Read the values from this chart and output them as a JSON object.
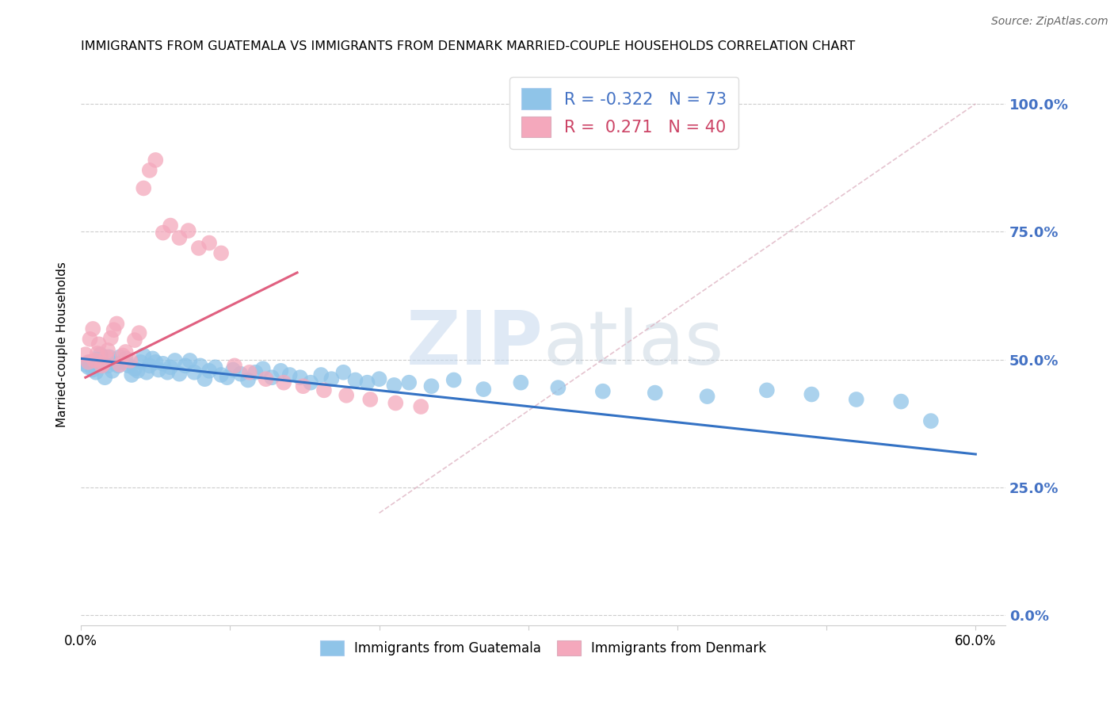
{
  "title": "IMMIGRANTS FROM GUATEMALA VS IMMIGRANTS FROM DENMARK MARRIED-COUPLE HOUSEHOLDS CORRELATION CHART",
  "source": "Source: ZipAtlas.com",
  "ylabel_label": "Married-couple Households",
  "legend_label1": "Immigrants from Guatemala",
  "legend_label2": "Immigrants from Denmark",
  "R1": -0.322,
  "N1": 73,
  "R2": 0.271,
  "N2": 40,
  "color_blue": "#8fc4e8",
  "color_pink": "#f4a8bc",
  "color_blue_line": "#3472c4",
  "color_pink_line": "#e06080",
  "color_diag": "#daaabb",
  "watermark_zip": "ZIP",
  "watermark_atlas": "atlas",
  "xlim": [
    0.0,
    0.62
  ],
  "ylim": [
    -0.02,
    1.08
  ],
  "ytick_vals": [
    0.0,
    0.25,
    0.5,
    0.75,
    1.0
  ],
  "ytick_labels": [
    "0.0%",
    "25.0%",
    "50.0%",
    "75.0%",
    "100.0%"
  ],
  "xtick_vals": [
    0.0,
    0.1,
    0.2,
    0.3,
    0.4,
    0.5,
    0.6
  ],
  "xtick_shown_labels": [
    "0.0%",
    "",
    "",
    "",
    "",
    "",
    "60.0%"
  ],
  "guatemala_x": [
    0.003,
    0.005,
    0.006,
    0.008,
    0.01,
    0.011,
    0.013,
    0.015,
    0.016,
    0.018,
    0.019,
    0.021,
    0.023,
    0.025,
    0.026,
    0.028,
    0.03,
    0.032,
    0.034,
    0.036,
    0.038,
    0.04,
    0.042,
    0.044,
    0.046,
    0.048,
    0.05,
    0.052,
    0.055,
    0.058,
    0.06,
    0.063,
    0.066,
    0.07,
    0.073,
    0.076,
    0.08,
    0.083,
    0.086,
    0.09,
    0.094,
    0.098,
    0.102,
    0.107,
    0.112,
    0.117,
    0.122,
    0.128,
    0.134,
    0.14,
    0.147,
    0.154,
    0.161,
    0.168,
    0.176,
    0.184,
    0.192,
    0.2,
    0.21,
    0.22,
    0.235,
    0.25,
    0.27,
    0.295,
    0.32,
    0.35,
    0.385,
    0.42,
    0.46,
    0.49,
    0.52,
    0.55,
    0.57
  ],
  "guatemala_y": [
    0.49,
    0.485,
    0.495,
    0.48,
    0.475,
    0.5,
    0.51,
    0.49,
    0.465,
    0.488,
    0.505,
    0.478,
    0.492,
    0.488,
    0.505,
    0.495,
    0.502,
    0.488,
    0.47,
    0.482,
    0.478,
    0.495,
    0.508,
    0.475,
    0.488,
    0.502,
    0.495,
    0.48,
    0.492,
    0.475,
    0.485,
    0.498,
    0.472,
    0.488,
    0.498,
    0.475,
    0.488,
    0.462,
    0.478,
    0.485,
    0.47,
    0.465,
    0.48,
    0.472,
    0.46,
    0.475,
    0.482,
    0.465,
    0.478,
    0.47,
    0.465,
    0.455,
    0.47,
    0.462,
    0.475,
    0.46,
    0.455,
    0.462,
    0.45,
    0.455,
    0.448,
    0.46,
    0.442,
    0.455,
    0.445,
    0.438,
    0.435,
    0.428,
    0.44,
    0.432,
    0.422,
    0.418,
    0.38
  ],
  "denmark_x": [
    0.003,
    0.005,
    0.006,
    0.008,
    0.009,
    0.011,
    0.012,
    0.014,
    0.015,
    0.017,
    0.018,
    0.02,
    0.022,
    0.024,
    0.026,
    0.028,
    0.03,
    0.033,
    0.036,
    0.039,
    0.042,
    0.046,
    0.05,
    0.055,
    0.06,
    0.066,
    0.072,
    0.079,
    0.086,
    0.094,
    0.103,
    0.113,
    0.124,
    0.136,
    0.149,
    0.163,
    0.178,
    0.194,
    0.211,
    0.228
  ],
  "denmark_y": [
    0.51,
    0.495,
    0.54,
    0.56,
    0.498,
    0.512,
    0.53,
    0.488,
    0.492,
    0.505,
    0.518,
    0.542,
    0.558,
    0.57,
    0.49,
    0.508,
    0.515,
    0.498,
    0.538,
    0.552,
    0.835,
    0.87,
    0.89,
    0.748,
    0.762,
    0.738,
    0.752,
    0.718,
    0.728,
    0.708,
    0.488,
    0.475,
    0.462,
    0.455,
    0.448,
    0.44,
    0.43,
    0.422,
    0.415,
    0.408
  ],
  "guat_line_x": [
    0.0,
    0.6
  ],
  "guat_line_y": [
    0.502,
    0.315
  ],
  "den_line_x": [
    0.003,
    0.145
  ],
  "den_line_y": [
    0.465,
    0.67
  ],
  "diag_line_x": [
    0.2,
    0.6
  ],
  "diag_line_y": [
    0.2,
    1.0
  ]
}
